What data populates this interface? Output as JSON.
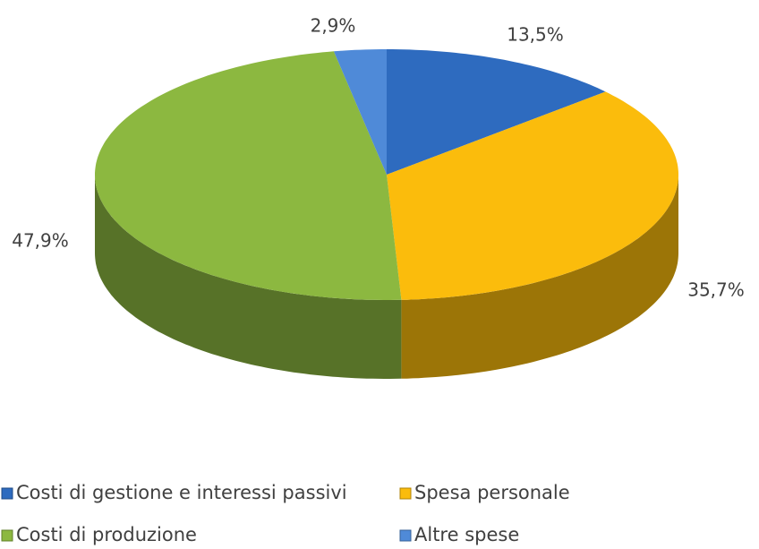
{
  "chart_data": {
    "type": "pie",
    "categories": [
      "Costi di gestione e interessi passivi",
      "Spesa personale",
      "Costi di produzione",
      "Altre spese"
    ],
    "values": [
      13.5,
      35.7,
      47.9,
      2.9
    ],
    "value_labels": [
      "13,5%",
      "35,7%",
      "47,9%",
      "2,9%"
    ],
    "colors": [
      "#2e6bbf",
      "#fbbc0c",
      "#8cb840",
      "#4f8ad8"
    ],
    "legend": "bottom"
  }
}
